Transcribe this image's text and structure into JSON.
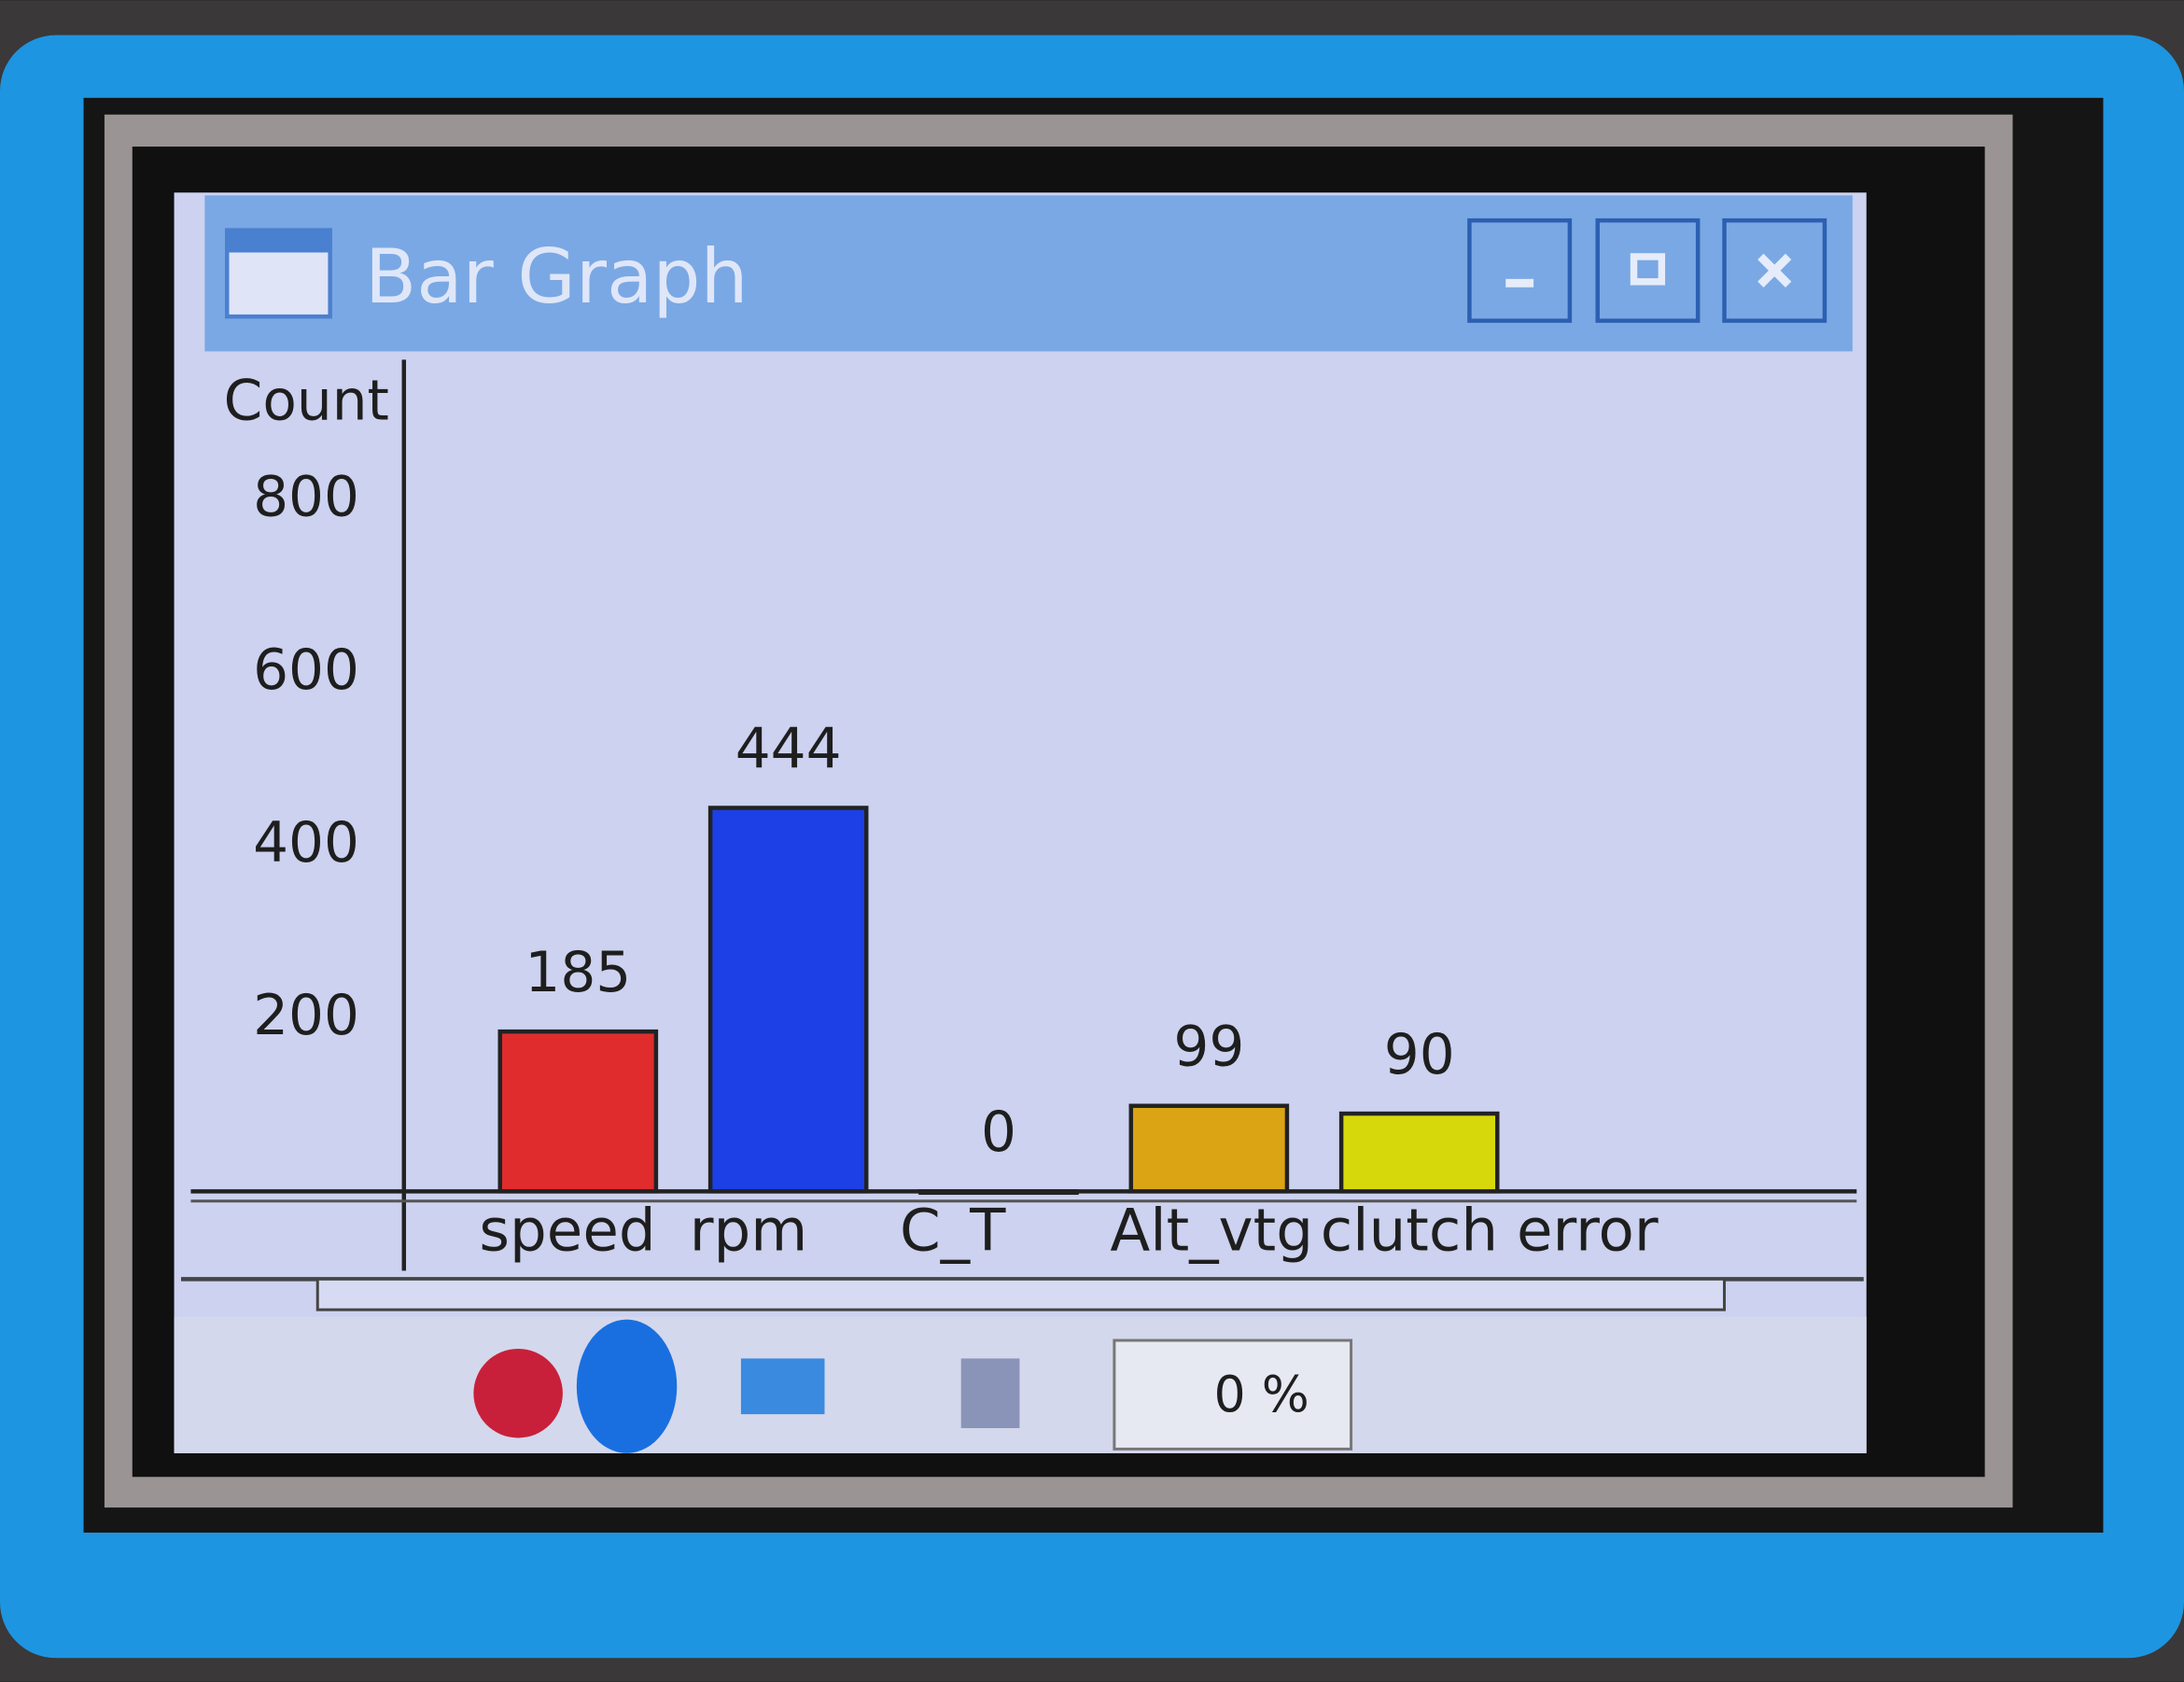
{
  "window": {
    "title": "Bar Graph"
  },
  "chart_data": {
    "type": "bar",
    "y_label": "Count",
    "categories": [
      "speed",
      "rpm",
      "C_T",
      "Alt_vtg",
      "clutch error"
    ],
    "values": [
      185,
      444,
      0,
      99,
      90
    ],
    "colors": [
      "#e02c2c",
      "#1c3fe6",
      "#4a4a7a",
      "#dba414",
      "#d6d80c"
    ],
    "ylim": [
      0,
      950
    ],
    "yticks": [
      200,
      400,
      600,
      800
    ],
    "grid": false
  },
  "taskbar": {
    "cpu": "0 %"
  }
}
